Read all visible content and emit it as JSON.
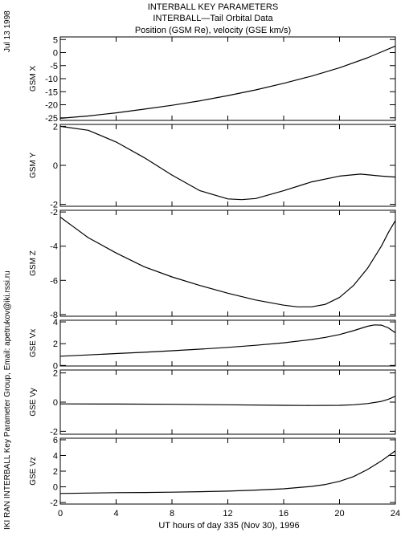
{
  "titles": [
    "INTERBALL KEY PARAMETERS",
    "INTERBALL—Tail Orbital Data",
    "Position (GSM Re), velocity (GSE km/s)"
  ],
  "side_date": "Jul 13 1998",
  "side_credit": "IKI RAN INTERBALL Key Parameter Group, Email: apetrukov@iki.rssi.ru",
  "chart_data": [
    {
      "type": "line",
      "ylabel": "GSM X",
      "ylim": [
        -26,
        6
      ],
      "yticks": [
        5,
        0,
        -5,
        -10,
        -15,
        -20,
        -25
      ],
      "x": [
        0,
        2,
        4,
        6,
        8,
        10,
        12,
        14,
        16,
        18,
        20,
        22,
        24
      ],
      "y": [
        -25.2,
        -24.3,
        -23.1,
        -21.7,
        -20.2,
        -18.5,
        -16.5,
        -14.3,
        -11.8,
        -9.0,
        -5.8,
        -2.0,
        2.5
      ]
    },
    {
      "type": "line",
      "ylabel": "GSM Y",
      "ylim": [
        -2.1,
        2.1
      ],
      "yticks": [
        2,
        0,
        -2
      ],
      "x": [
        0,
        2,
        4,
        6,
        8,
        10,
        12,
        13,
        14,
        16,
        18,
        20,
        21.5,
        23,
        24
      ],
      "y": [
        2.0,
        1.8,
        1.2,
        0.4,
        -0.5,
        -1.3,
        -1.72,
        -1.76,
        -1.7,
        -1.3,
        -0.85,
        -0.55,
        -0.45,
        -0.55,
        -0.6
      ]
    },
    {
      "type": "line",
      "ylabel": "GSM Z",
      "ylim": [
        -8.1,
        -1.9
      ],
      "yticks": [
        -2,
        -4,
        -6,
        -8
      ],
      "x": [
        0,
        1,
        2,
        4,
        6,
        8,
        10,
        12,
        14,
        16,
        17,
        18,
        19,
        20,
        21,
        22,
        23,
        23.5,
        24
      ],
      "y": [
        -2.3,
        -2.9,
        -3.5,
        -4.4,
        -5.2,
        -5.8,
        -6.3,
        -6.75,
        -7.15,
        -7.45,
        -7.55,
        -7.55,
        -7.4,
        -7.0,
        -6.3,
        -5.3,
        -4.0,
        -3.2,
        -2.5
      ]
    },
    {
      "type": "line",
      "ylabel": "GSE Vx",
      "ylim": [
        -0.05,
        4.15
      ],
      "yticks": [
        4,
        2,
        0
      ],
      "x": [
        0,
        2,
        4,
        6,
        8,
        10,
        12,
        14,
        16,
        18,
        19,
        20,
        21,
        22,
        22.5,
        23,
        23.5,
        24
      ],
      "y": [
        0.85,
        0.97,
        1.09,
        1.21,
        1.35,
        1.5,
        1.66,
        1.85,
        2.08,
        2.38,
        2.58,
        2.84,
        3.19,
        3.6,
        3.72,
        3.7,
        3.45,
        3.0
      ]
    },
    {
      "type": "line",
      "ylabel": "GSE Vy",
      "ylim": [
        -2.2,
        2.2
      ],
      "yticks": [
        2,
        0,
        -2
      ],
      "x": [
        0,
        4,
        8,
        12,
        16,
        18,
        20,
        21,
        22,
        23,
        23.5,
        24
      ],
      "y": [
        -0.12,
        -0.13,
        -0.15,
        -0.18,
        -0.22,
        -0.23,
        -0.22,
        -0.18,
        -0.1,
        0.05,
        0.2,
        0.4
      ]
    },
    {
      "type": "line",
      "ylabel": "GSE Vz",
      "ylim": [
        -2.2,
        6.2
      ],
      "yticks": [
        6,
        4,
        2,
        0,
        -2
      ],
      "x": [
        0,
        2,
        4,
        6,
        8,
        10,
        12,
        14,
        16,
        18,
        19,
        20,
        21,
        22,
        23,
        24
      ],
      "y": [
        -0.85,
        -0.8,
        -0.75,
        -0.72,
        -0.68,
        -0.62,
        -0.55,
        -0.42,
        -0.25,
        0.05,
        0.3,
        0.7,
        1.3,
        2.2,
        3.3,
        4.6
      ]
    }
  ],
  "xaxis": {
    "ticks": [
      0,
      4,
      8,
      12,
      16,
      20,
      24
    ],
    "range": [
      0,
      24
    ],
    "label": "UT hours of day 335 (Nov 30), 1996"
  },
  "colors": {
    "line": "#000000",
    "frame": "#000000",
    "background": "#ffffff"
  }
}
